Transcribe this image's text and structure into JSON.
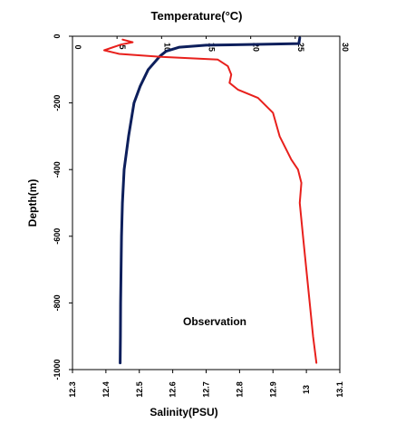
{
  "chart_data": {
    "type": "line",
    "top_axis_title": "Temperature(°C)",
    "bottom_axis_title": "Salinity(PSU)",
    "left_axis_title": "Depth(m)",
    "annotation": "Observation",
    "depth_ticks": [
      "0",
      "-200",
      "-400",
      "-600",
      "-800",
      "-1000"
    ],
    "temperature_ticks": [
      "0",
      "5",
      "10",
      "15",
      "20",
      "25",
      "30"
    ],
    "salinity_ticks": [
      "12.3",
      "12.4",
      "12.5",
      "12.6",
      "12.7",
      "12.8",
      "12.9",
      "13",
      "13.1"
    ],
    "ylim": [
      -1000,
      0
    ],
    "temperature_lim": [
      0,
      30
    ],
    "salinity_lim": [
      12.3,
      13.1
    ],
    "series": [
      {
        "axis": "temperature",
        "color": "#0d1f5c",
        "points": [
          [
            25.5,
            -5
          ],
          [
            25.4,
            -22
          ],
          [
            22,
            -24
          ],
          [
            15,
            -27
          ],
          [
            12,
            -33
          ],
          [
            10.5,
            -45
          ],
          [
            9.8,
            -60
          ],
          [
            8.5,
            -100
          ],
          [
            7.6,
            -150
          ],
          [
            6.9,
            -200
          ],
          [
            6.3,
            -300
          ],
          [
            5.8,
            -400
          ],
          [
            5.6,
            -500
          ],
          [
            5.5,
            -600
          ],
          [
            5.45,
            -700
          ],
          [
            5.4,
            -800
          ],
          [
            5.38,
            -900
          ],
          [
            5.35,
            -980
          ]
        ]
      },
      {
        "axis": "salinity",
        "color": "#e8201c",
        "points": [
          [
            12.45,
            -10
          ],
          [
            12.48,
            -18
          ],
          [
            12.445,
            -25
          ],
          [
            12.395,
            -42
          ],
          [
            12.44,
            -53
          ],
          [
            12.565,
            -62
          ],
          [
            12.735,
            -70
          ],
          [
            12.765,
            -90
          ],
          [
            12.775,
            -115
          ],
          [
            12.77,
            -140
          ],
          [
            12.795,
            -160
          ],
          [
            12.855,
            -185
          ],
          [
            12.9,
            -230
          ],
          [
            12.92,
            -300
          ],
          [
            12.955,
            -370
          ],
          [
            12.975,
            -400
          ],
          [
            12.985,
            -440
          ],
          [
            12.98,
            -500
          ],
          [
            12.99,
            -600
          ],
          [
            13.0,
            -700
          ],
          [
            13.01,
            -800
          ],
          [
            13.02,
            -900
          ],
          [
            13.03,
            -980
          ]
        ]
      }
    ]
  }
}
